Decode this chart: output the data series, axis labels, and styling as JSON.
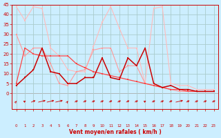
{
  "xlabel": "Vent moyen/en rafales ( km/h )",
  "background_color": "#cceeff",
  "grid_color": "#aacccc",
  "x_values": [
    0,
    1,
    2,
    3,
    4,
    5,
    6,
    7,
    8,
    9,
    10,
    11,
    12,
    13,
    14,
    15,
    16,
    17,
    18,
    19,
    20,
    21,
    22,
    23
  ],
  "ylim": [
    -8,
    45
  ],
  "yticks": [
    0,
    5,
    10,
    15,
    20,
    25,
    30,
    35,
    40,
    45
  ],
  "line_light1_y": [
    30,
    19,
    23,
    23,
    15,
    5,
    4,
    11,
    12,
    22,
    23,
    23,
    11,
    14,
    14,
    5,
    4,
    3,
    2,
    1,
    1,
    1,
    1,
    1
  ],
  "line_light2_y": [
    44,
    37,
    44,
    43,
    23,
    19,
    12,
    11,
    11,
    24,
    36,
    44,
    33,
    23,
    23,
    5,
    43,
    44,
    5,
    4,
    4,
    2,
    2,
    2
  ],
  "line_dark1_y": [
    4,
    8,
    12,
    23,
    11,
    10,
    5,
    5,
    8,
    8,
    18,
    8,
    7,
    18,
    14,
    23,
    5,
    3,
    4,
    2,
    2,
    1,
    1,
    1
  ],
  "line_dark2_y": [
    5,
    23,
    20,
    19,
    19,
    19,
    19,
    15,
    13,
    11,
    10,
    9,
    8,
    7,
    6,
    5,
    4,
    3,
    2,
    2,
    1,
    1,
    1,
    1
  ],
  "color_light1": "#ff9999",
  "color_light2": "#ffbbbb",
  "color_dark1": "#cc0000",
  "color_dark2": "#ff4444",
  "arrow_angles": [
    80,
    70,
    60,
    45,
    45,
    45,
    80,
    65,
    65,
    65,
    65,
    65,
    65,
    65,
    65,
    70,
    65,
    65,
    65,
    45,
    65,
    65,
    65,
    65
  ]
}
